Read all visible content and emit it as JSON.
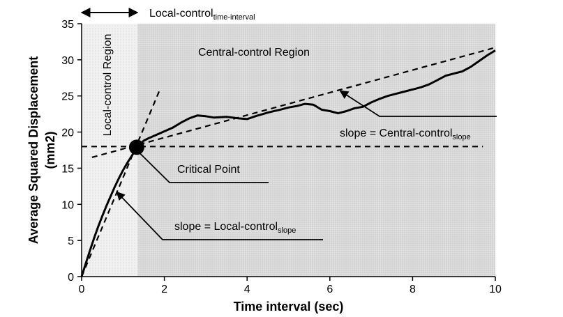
{
  "chart_data": {
    "type": "line",
    "title": "",
    "xlabel": "Time interval (sec)",
    "ylabel_line1": "Average Squared Displacement",
    "ylabel_line2": "(mm2)",
    "xlim": [
      0,
      10
    ],
    "ylim": [
      0,
      35
    ],
    "x_ticks": [
      "0",
      "2",
      "4",
      "6",
      "8",
      "10"
    ],
    "y_ticks": [
      "0",
      "5",
      "10",
      "15",
      "20",
      "25",
      "30",
      "35"
    ],
    "regions": {
      "local_label": "Local-control Region",
      "central_label": "Central-control Region",
      "boundary_x": 1.35
    },
    "interval_label": "Local-control",
    "interval_label_sub": "time-interval",
    "critical_point": {
      "x": 1.33,
      "y": 17.9,
      "label": "Critical Point"
    },
    "local_slope_label": "slope = Local-control",
    "local_slope_sub": "slope",
    "central_slope_label": "slope = Central-control",
    "central_slope_sub": "slope",
    "series": [
      {
        "x": [
          0,
          0.1,
          0.2,
          0.3,
          0.4,
          0.5,
          0.6,
          0.7,
          0.8,
          0.9,
          1.0,
          1.1,
          1.2,
          1.3,
          1.4,
          1.5,
          1.6,
          1.8,
          2.0,
          2.2,
          2.4,
          2.6,
          2.8,
          3.0,
          3.2,
          3.5,
          3.8,
          4.0,
          4.2,
          4.5,
          4.8,
          5.0,
          5.2,
          5.4,
          5.6,
          5.8,
          6.0,
          6.2,
          6.4,
          6.6,
          6.8,
          7.0,
          7.2,
          7.4,
          7.6,
          7.8,
          8.0,
          8.2,
          8.4,
          8.6,
          8.8,
          9.0,
          9.2,
          9.4,
          9.6,
          9.8,
          10.0
        ],
        "y": [
          0,
          1.8,
          3.6,
          5.3,
          6.9,
          8.4,
          9.8,
          11.1,
          12.4,
          13.6,
          14.7,
          15.7,
          16.6,
          17.5,
          18.2,
          18.8,
          19.1,
          19.6,
          20.1,
          20.6,
          21.3,
          21.9,
          22.3,
          22.2,
          22.0,
          22.1,
          21.9,
          21.8,
          22.2,
          22.7,
          23.1,
          23.4,
          23.6,
          23.9,
          23.8,
          23.1,
          22.9,
          22.6,
          22.9,
          23.3,
          23.5,
          24.1,
          24.6,
          25.0,
          25.3,
          25.6,
          25.9,
          26.2,
          26.6,
          27.2,
          27.8,
          28.1,
          28.4,
          29.0,
          29.8,
          30.6,
          31.3
        ]
      }
    ],
    "reference_lines": [
      {
        "x1": 0,
        "y1": 0,
        "x2": 1.9,
        "y2": 26
      },
      {
        "x1": 0.25,
        "y1": 16.5,
        "x2": 10,
        "y2": 31.7
      },
      {
        "x1": 0,
        "y1": 18,
        "x2": 9.7,
        "y2": 18
      }
    ]
  }
}
